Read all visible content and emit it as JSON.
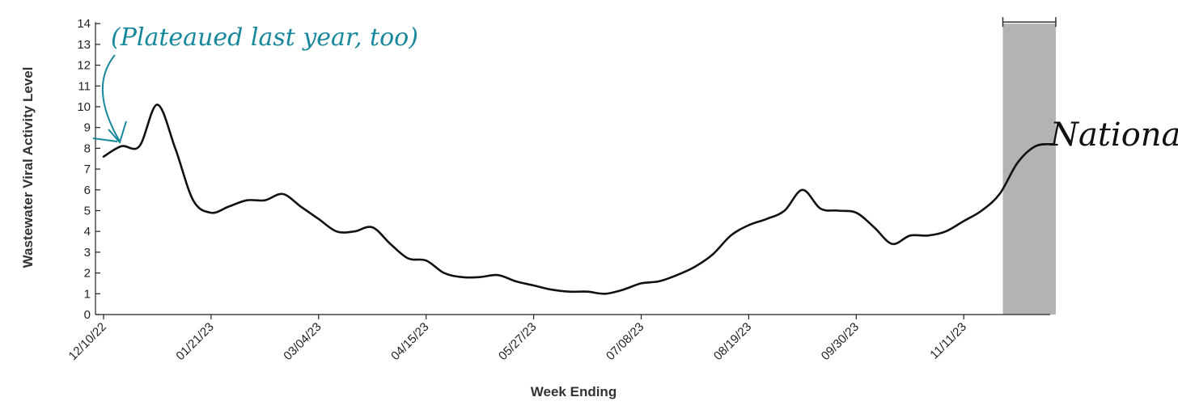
{
  "chart_data": {
    "type": "line",
    "xlabel": "Week Ending",
    "ylabel": "Wastewater Viral Activity Level",
    "ylim": [
      0,
      14
    ],
    "yticks": [
      0,
      1,
      2,
      3,
      4,
      5,
      6,
      7,
      8,
      9,
      10,
      11,
      12,
      13,
      14
    ],
    "xtick_labels": [
      "12/10/22",
      "01/21/23",
      "03/04/23",
      "04/15/23",
      "05/27/23",
      "07/08/23",
      "08/19/23",
      "09/30/23",
      "11/11/23"
    ],
    "x_start": "12/10/22",
    "x_step_days": 7,
    "series": [
      {
        "name": "National",
        "values": [
          7.6,
          8.1,
          8.1,
          10.1,
          8.0,
          5.5,
          4.9,
          5.2,
          5.5,
          5.5,
          5.8,
          5.2,
          4.6,
          4.0,
          4.0,
          4.2,
          3.4,
          2.7,
          2.6,
          2.0,
          1.8,
          1.8,
          1.9,
          1.6,
          1.4,
          1.2,
          1.1,
          1.1,
          1.0,
          1.2,
          1.5,
          1.6,
          1.9,
          2.3,
          2.9,
          3.8,
          4.3,
          4.6,
          5.0,
          6.0,
          5.1,
          5.0,
          4.9,
          4.2,
          3.4,
          3.8,
          3.8,
          4.0,
          4.5,
          5.0,
          5.8,
          7.3,
          8.1,
          8.2
        ],
        "color": "#111111"
      }
    ],
    "highlight": {
      "from_index": 50,
      "to_index": 53,
      "color": "#b3b3b3"
    },
    "grid": false,
    "annotation": {
      "text": "(Plateaued last year, too)",
      "color": "#17879b",
      "points_to_index": 1
    }
  }
}
